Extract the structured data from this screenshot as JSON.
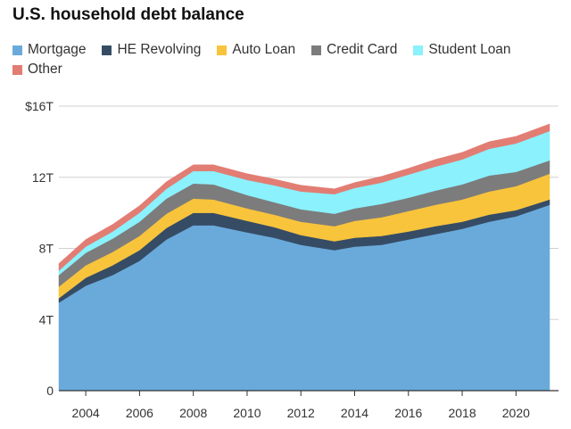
{
  "chart_data": {
    "type": "area",
    "stacked": true,
    "title": "U.S. household debt balance",
    "x": [
      2003.0,
      2004.0,
      2005.0,
      2006.0,
      2007.0,
      2008.0,
      2008.75,
      2010.0,
      2011.0,
      2012.0,
      2013.25,
      2014.0,
      2015.0,
      2016.0,
      2017.0,
      2018.0,
      2019.0,
      2020.0,
      2021.25
    ],
    "series": [
      {
        "name": "Mortgage",
        "color": "#6aaadb",
        "values": [
          4.95,
          5.9,
          6.5,
          7.3,
          8.5,
          9.3,
          9.3,
          8.9,
          8.6,
          8.2,
          7.9,
          8.1,
          8.2,
          8.5,
          8.8,
          9.1,
          9.5,
          9.8,
          10.45
        ]
      },
      {
        "name": "HE Revolving",
        "color": "#364c65",
        "values": [
          0.25,
          0.45,
          0.55,
          0.6,
          0.65,
          0.7,
          0.7,
          0.65,
          0.6,
          0.55,
          0.5,
          0.5,
          0.5,
          0.45,
          0.45,
          0.4,
          0.4,
          0.35,
          0.3
        ]
      },
      {
        "name": "Auto Loan",
        "color": "#f8c43c",
        "values": [
          0.65,
          0.7,
          0.75,
          0.8,
          0.8,
          0.8,
          0.75,
          0.7,
          0.7,
          0.75,
          0.85,
          0.95,
          1.05,
          1.15,
          1.2,
          1.25,
          1.3,
          1.35,
          1.45
        ]
      },
      {
        "name": "Credit Card",
        "color": "#7c7c7c",
        "values": [
          0.65,
          0.7,
          0.75,
          0.8,
          0.85,
          0.85,
          0.85,
          0.75,
          0.7,
          0.7,
          0.7,
          0.7,
          0.75,
          0.75,
          0.8,
          0.85,
          0.9,
          0.8,
          0.75
        ]
      },
      {
        "name": "Student Loan",
        "color": "#8af1fd",
        "values": [
          0.25,
          0.35,
          0.4,
          0.5,
          0.55,
          0.7,
          0.75,
          0.85,
          0.95,
          1.0,
          1.1,
          1.15,
          1.2,
          1.3,
          1.35,
          1.4,
          1.5,
          1.6,
          1.65
        ]
      },
      {
        "name": "Other",
        "color": "#e27d73",
        "values": [
          0.4,
          0.4,
          0.4,
          0.4,
          0.4,
          0.35,
          0.35,
          0.35,
          0.35,
          0.35,
          0.3,
          0.3,
          0.35,
          0.35,
          0.4,
          0.4,
          0.4,
          0.4,
          0.4
        ]
      }
    ],
    "xlim": [
      2003.0,
      2021.6
    ],
    "ylim": [
      0,
      16
    ],
    "yticks": [
      0,
      4,
      8,
      12,
      16
    ],
    "ytick_labels": [
      "0",
      "4T",
      "8T",
      "12T",
      "$16T"
    ],
    "xticks": [
      2004,
      2006,
      2008,
      2010,
      2012,
      2014,
      2016,
      2018,
      2020
    ],
    "xtick_labels": [
      "2004",
      "2006",
      "2008",
      "2010",
      "2012",
      "2014",
      "2016",
      "2018",
      "2020"
    ],
    "grid": "horizontal",
    "legend_position": "top"
  }
}
